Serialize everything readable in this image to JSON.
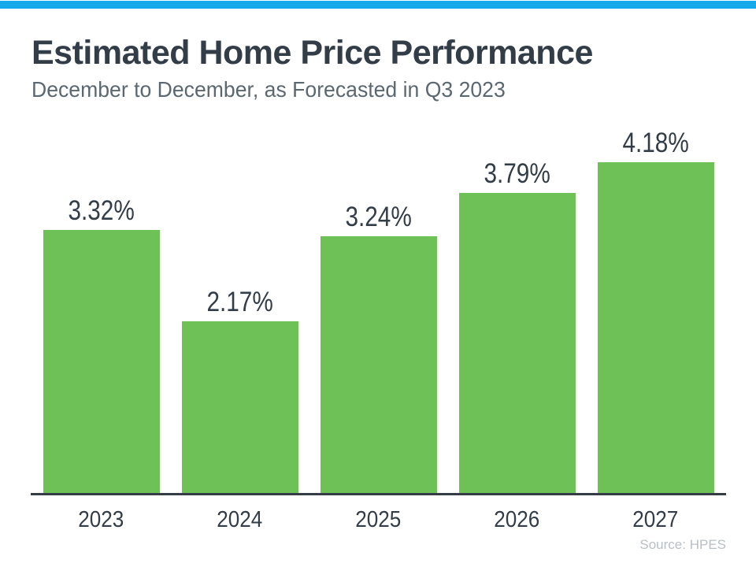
{
  "page": {
    "accent_bar_color": "#17AAEA",
    "background": "#FFFFFF"
  },
  "header": {
    "title": "Estimated Home Price Performance",
    "subtitle": "December to December, as Forecasted in Q3 2023"
  },
  "footer": {
    "source": "Source: HPES"
  },
  "chart_data": {
    "type": "bar",
    "title": "Estimated Home Price Performance",
    "subtitle": "December to December, as Forecasted in Q3 2023",
    "categories": [
      "2023",
      "2024",
      "2025",
      "2026",
      "2027"
    ],
    "values": [
      3.32,
      2.17,
      3.24,
      3.79,
      4.18
    ],
    "value_labels": [
      "3.32%",
      "2.17%",
      "3.24%",
      "3.79%",
      "4.18%"
    ],
    "xlabel": "",
    "ylabel": "",
    "ylim": [
      0,
      4.4
    ],
    "grid": false,
    "legend": false,
    "bar_color": "#6EC157",
    "label_color": "#333D47",
    "axis_line_color": "#343D45",
    "source": "Source: HPES"
  }
}
